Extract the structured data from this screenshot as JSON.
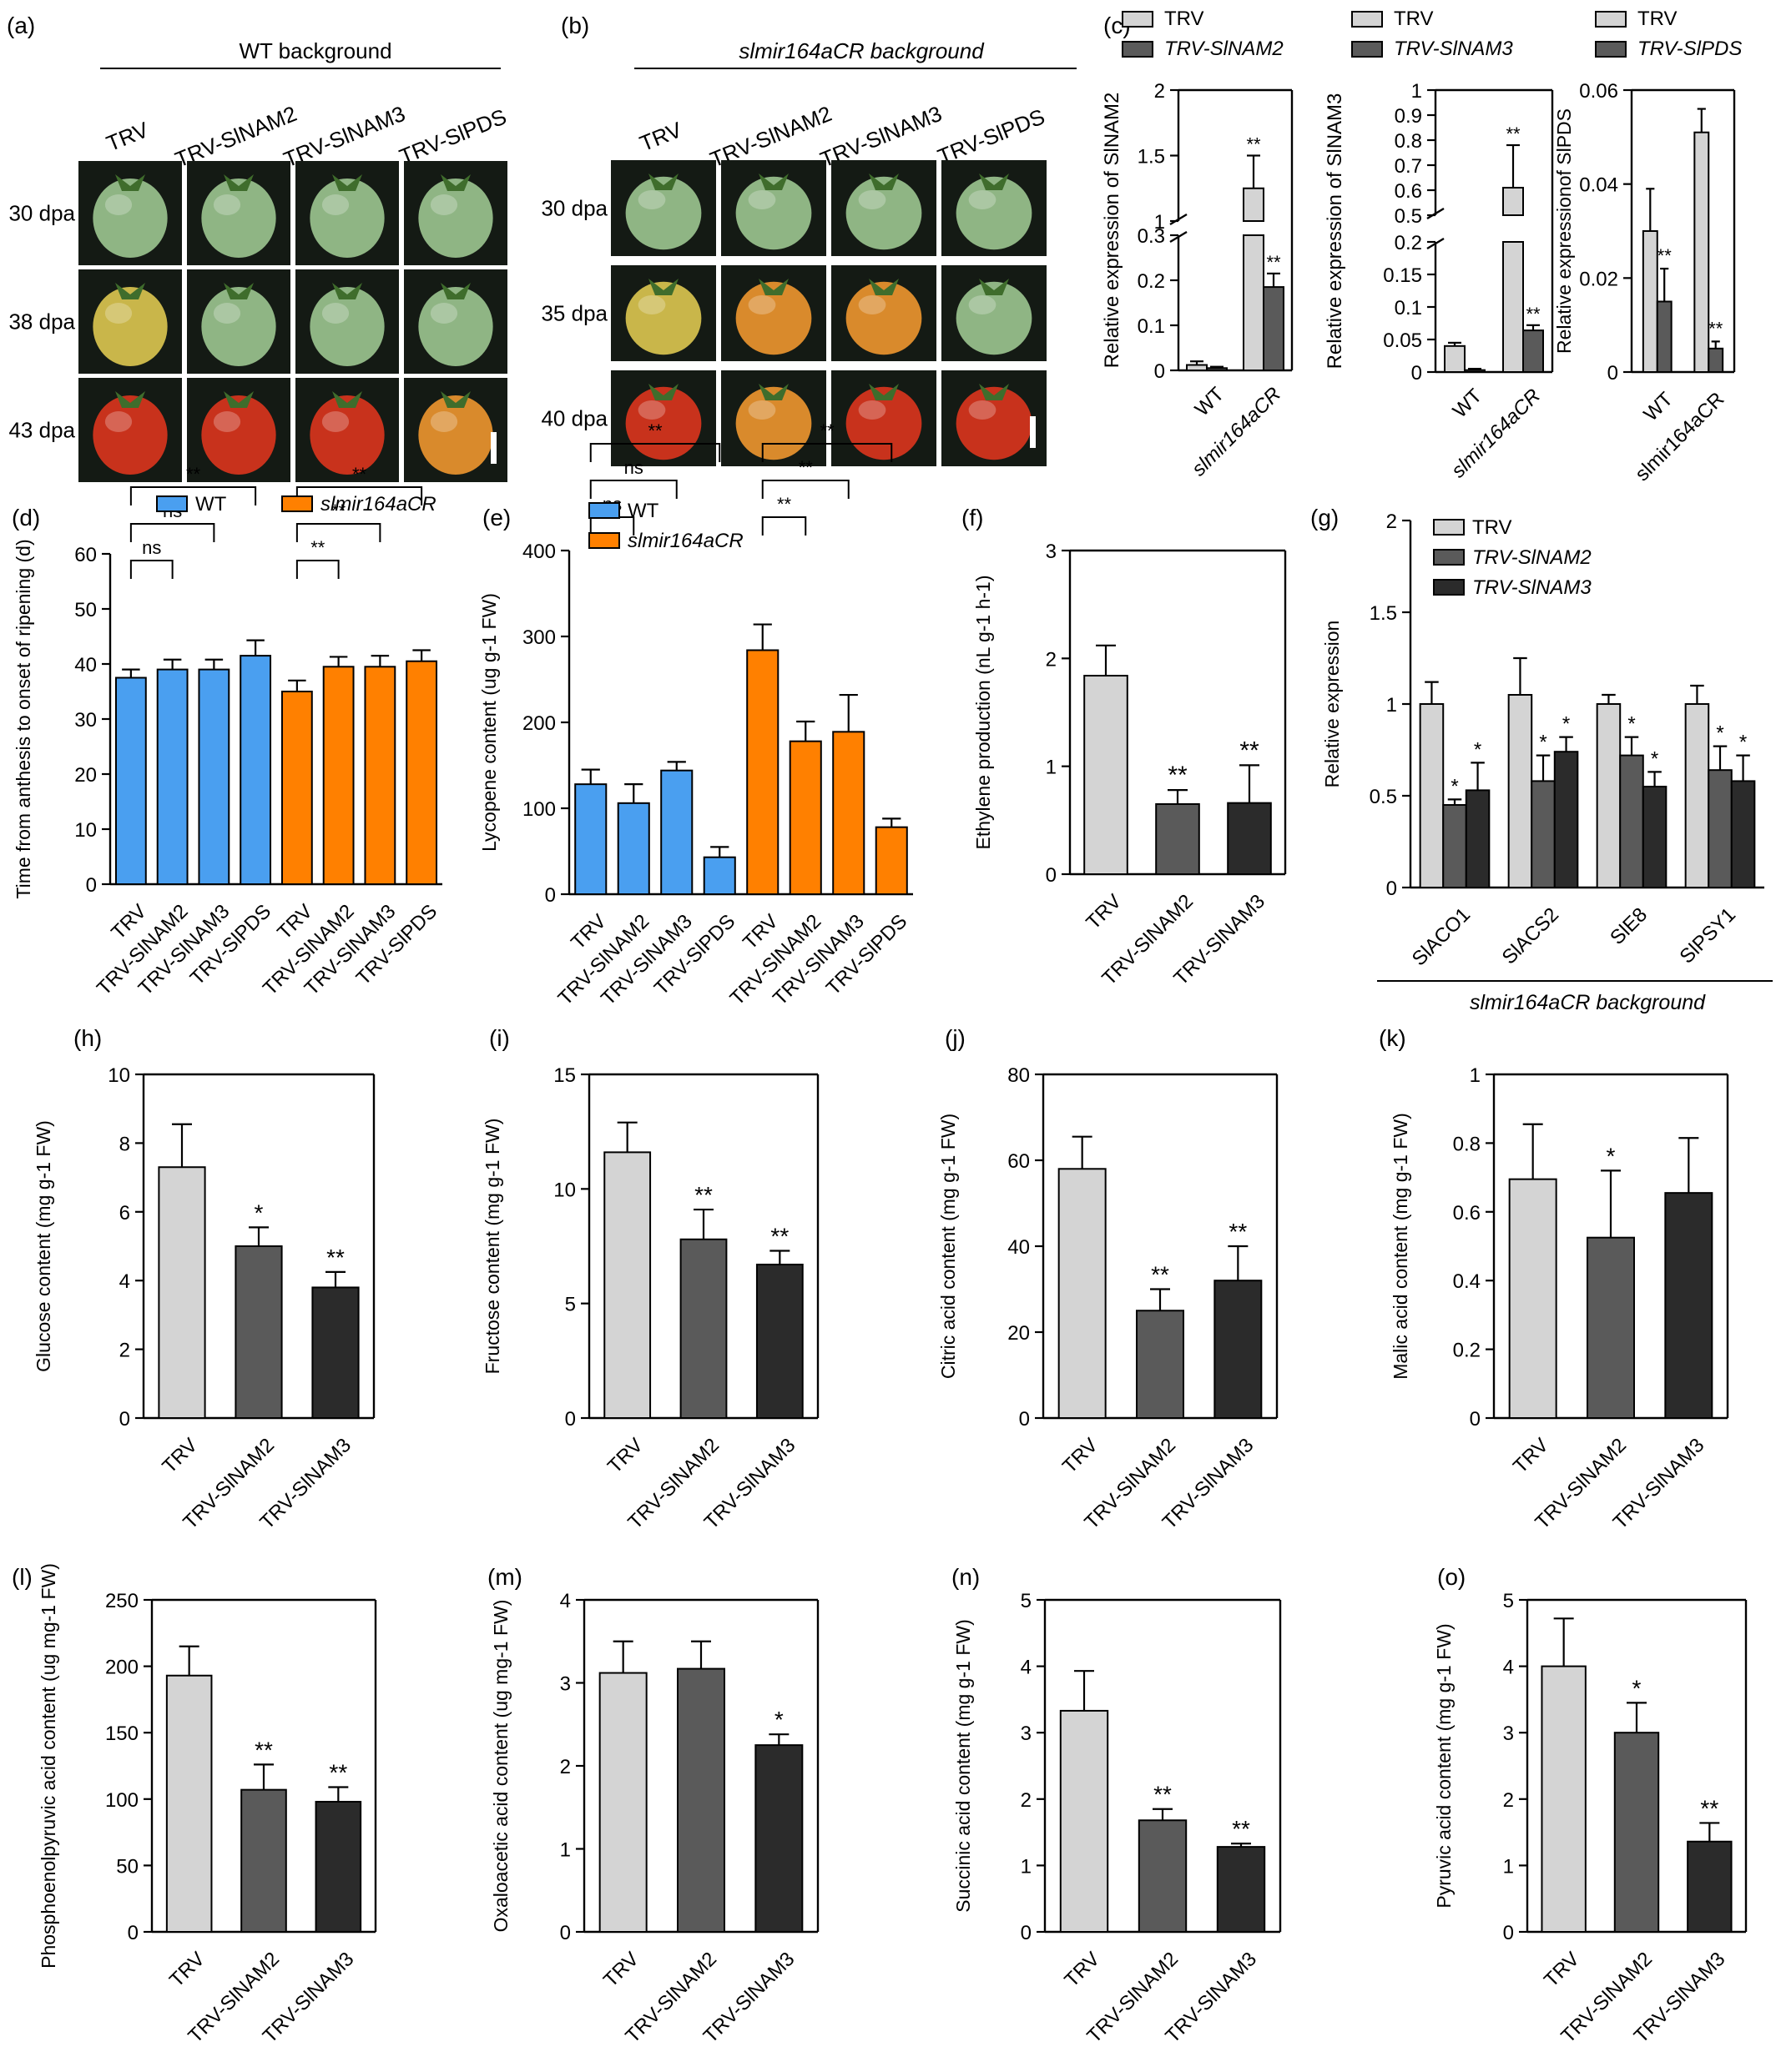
{
  "colors": {
    "trv": "#d4d4d4",
    "nam2": "#5a5a5a",
    "nam3": "#2b2b2b",
    "wt": "#4a9ff0",
    "mir": "#ff8000",
    "photo_bg": "#141a14",
    "fruit_green": "#8fb584",
    "fruit_yellow": "#c9b64a",
    "fruit_orange": "#d98a2c",
    "fruit_red": "#c8321c"
  },
  "photos": {
    "a": {
      "letter": "(a)",
      "header": "WT background",
      "columns": [
        "TRV",
        "TRV-SlNAM2",
        "TRV-SlNAM3",
        "TRV-SlPDS"
      ],
      "rows": [
        "30 dpa",
        "38 dpa",
        "43 dpa"
      ],
      "fruit_colors": [
        [
          "green",
          "green",
          "green",
          "green"
        ],
        [
          "yellow",
          "green",
          "green",
          "green"
        ],
        [
          "red",
          "red",
          "red",
          "orange"
        ]
      ]
    },
    "b": {
      "letter": "(b)",
      "header": "slmir164aCR background",
      "columns": [
        "TRV",
        "TRV-SlNAM2",
        "TRV-SlNAM3",
        "TRV-SlPDS"
      ],
      "rows": [
        "30 dpa",
        "35 dpa",
        "40 dpa"
      ],
      "fruit_colors": [
        [
          "green",
          "green",
          "green",
          "green"
        ],
        [
          "yellow",
          "orange",
          "orange",
          "green"
        ],
        [
          "red",
          "orange",
          "red",
          "red"
        ]
      ]
    }
  },
  "chart_data": [
    {
      "id": "c1",
      "letter": "(c)",
      "type": "bar",
      "legend": [
        "TRV",
        "TRV-SlNAM2"
      ],
      "ylabel": "Relative expression of SlNAM2",
      "categories": [
        "WT",
        "slmir164aCR"
      ],
      "broken_axis": true,
      "lower_range": [
        0,
        0.3
      ],
      "upper_range": [
        1.0,
        2.0
      ],
      "lower_ticks": [
        0,
        0.1,
        0.2,
        0.3
      ],
      "upper_ticks": [
        1.0,
        1.5,
        2.0
      ],
      "series": [
        {
          "name": "TRV",
          "values": [
            0.012,
            1.25
          ],
          "errors": [
            0.008,
            0.25
          ]
        },
        {
          "name": "TRV-SlNAM2",
          "values": [
            0.005,
            0.185
          ],
          "errors": [
            0.003,
            0.03
          ]
        }
      ],
      "sig": [
        [
          "",
          "**"
        ],
        [
          "",
          "**"
        ]
      ]
    },
    {
      "id": "c2",
      "letter": "",
      "type": "bar",
      "legend": [
        "TRV",
        "TRV-SlNAM3"
      ],
      "ylabel": "Relative expression of SlNAM3",
      "categories": [
        "WT",
        "slmir164aCR"
      ],
      "broken_axis": true,
      "lower_range": [
        0,
        0.2
      ],
      "upper_range": [
        0.5,
        1.0
      ],
      "lower_ticks": [
        0,
        0.05,
        0.1,
        0.15,
        0.2
      ],
      "upper_ticks": [
        0.5,
        0.6,
        0.7,
        0.8,
        0.9,
        1.0
      ],
      "series": [
        {
          "name": "TRV",
          "values": [
            0.04,
            0.61
          ],
          "errors": [
            0.005,
            0.17
          ]
        },
        {
          "name": "TRV-SlNAM3",
          "values": [
            0.003,
            0.064
          ],
          "errors": [
            0.002,
            0.008
          ]
        }
      ],
      "sig": [
        [
          "",
          "**"
        ],
        [
          "",
          "**"
        ]
      ]
    },
    {
      "id": "c3",
      "letter": "",
      "type": "bar",
      "legend": [
        "TRV",
        "TRV-SlPDS"
      ],
      "ylabel": "Relative expressionof SlPDS",
      "categories": [
        "WT",
        "slmir164aCR"
      ],
      "ylim": [
        0,
        0.06
      ],
      "yticks": [
        0,
        0.02,
        0.04,
        0.06
      ],
      "series": [
        {
          "name": "TRV",
          "values": [
            0.03,
            0.051
          ],
          "errors": [
            0.009,
            0.005
          ]
        },
        {
          "name": "TRV-SlPDS",
          "values": [
            0.015,
            0.005
          ],
          "errors": [
            0.007,
            0.0015
          ]
        }
      ],
      "sig": [
        [
          "",
          ""
        ],
        [
          "**",
          "**"
        ]
      ]
    },
    {
      "id": "d",
      "letter": "(d)",
      "type": "bar",
      "legend": [
        "WT",
        "slmir164aCR"
      ],
      "ylabel": "Time from anthesis to onset of ripening (d)",
      "categories": [
        "TRV",
        "TRV-SlNAM2",
        "TRV-SlNAM3",
        "TRV-SlPDS",
        "TRV",
        "TRV-SlNAM2",
        "TRV-SlNAM3",
        "TRV-SlPDS"
      ],
      "ylim": [
        0,
        60
      ],
      "yticks": [
        0,
        10,
        20,
        30,
        40,
        50,
        60
      ],
      "values": [
        37.5,
        39,
        39,
        41.5,
        35,
        39.5,
        39.5,
        40.5
      ],
      "errors": [
        1.5,
        1.8,
        1.8,
        2.8,
        2,
        1.8,
        2,
        2
      ],
      "groups": [
        "WT",
        "WT",
        "WT",
        "WT",
        "slmir164aCR",
        "slmir164aCR",
        "slmir164aCR",
        "slmir164aCR"
      ],
      "brackets": [
        {
          "from": 0,
          "to": 1,
          "label": "ns",
          "level": 1
        },
        {
          "from": 0,
          "to": 2,
          "label": "ns",
          "level": 2
        },
        {
          "from": 0,
          "to": 3,
          "label": "**",
          "level": 3
        },
        {
          "from": 4,
          "to": 5,
          "label": "**",
          "level": 1
        },
        {
          "from": 4,
          "to": 6,
          "label": "**",
          "level": 2
        },
        {
          "from": 4,
          "to": 7,
          "label": "**",
          "level": 3
        }
      ]
    },
    {
      "id": "e",
      "letter": "(e)",
      "type": "bar",
      "legend": [
        "WT",
        "slmir164aCR"
      ],
      "ylabel": "Lycopene content (ug g-1 FW)",
      "categories": [
        "TRV",
        "TRV-SlNAM2",
        "TRV-SlNAM3",
        "TRV-SlPDS",
        "TRV",
        "TRV-SlNAM2",
        "TRV-SlNAM3",
        "TRV-SlPDS"
      ],
      "ylim": [
        0,
        400
      ],
      "yticks": [
        0,
        100,
        200,
        300,
        400
      ],
      "values": [
        128,
        106,
        144,
        43,
        284,
        178,
        189,
        78
      ],
      "errors": [
        17,
        22,
        10,
        12,
        30,
        23,
        43,
        10
      ],
      "groups": [
        "WT",
        "WT",
        "WT",
        "WT",
        "slmir164aCR",
        "slmir164aCR",
        "slmir164aCR",
        "slmir164aCR"
      ],
      "brackets": [
        {
          "from": 0,
          "to": 1,
          "label": "ns",
          "level": 1
        },
        {
          "from": 0,
          "to": 2,
          "label": "ns",
          "level": 2
        },
        {
          "from": 0,
          "to": 3,
          "label": "**",
          "level": 3
        },
        {
          "from": 4,
          "to": 5,
          "label": "**",
          "level": 1
        },
        {
          "from": 4,
          "to": 6,
          "label": "**",
          "level": 2
        },
        {
          "from": 4,
          "to": 7,
          "label": "**",
          "level": 3
        }
      ]
    },
    {
      "id": "f",
      "letter": "(f)",
      "type": "bar",
      "ylabel": "Ethylene production (nL g-1 h-1)",
      "categories": [
        "TRV",
        "TRV-SlNAM2",
        "TRV-SlNAM3"
      ],
      "ylim": [
        0,
        3
      ],
      "yticks": [
        0,
        1,
        2,
        3
      ],
      "values": [
        1.84,
        0.65,
        0.66
      ],
      "errors": [
        0.28,
        0.13,
        0.35
      ],
      "sig": [
        "",
        "**",
        "**"
      ]
    },
    {
      "id": "g",
      "letter": "(g)",
      "type": "bar",
      "legend": [
        "TRV",
        "TRV-SlNAM2",
        "TRV-SlNAM3"
      ],
      "ylabel": "Relative expression",
      "xtitle": "slmir164aCR background",
      "categories": [
        "SlACO1",
        "SlACS2",
        "SlE8",
        "SlPSY1"
      ],
      "ylim": [
        0,
        2.0
      ],
      "yticks": [
        0,
        0.5,
        1.0,
        1.5,
        2.0
      ],
      "series": [
        {
          "name": "TRV",
          "values": [
            1.0,
            1.05,
            1.0,
            1.0
          ],
          "errors": [
            0.12,
            0.2,
            0.05,
            0.1
          ]
        },
        {
          "name": "TRV-SlNAM2",
          "values": [
            0.45,
            0.58,
            0.72,
            0.64
          ],
          "errors": [
            0.03,
            0.14,
            0.1,
            0.13
          ]
        },
        {
          "name": "TRV-SlNAM3",
          "values": [
            0.53,
            0.74,
            0.55,
            0.58
          ],
          "errors": [
            0.15,
            0.08,
            0.08,
            0.14
          ]
        }
      ],
      "sig": [
        [
          "",
          "",
          "",
          ""
        ],
        [
          "*",
          "*",
          "*",
          "*"
        ],
        [
          "*",
          "*",
          "*",
          "*"
        ]
      ]
    },
    {
      "id": "h",
      "letter": "(h)",
      "type": "bar",
      "ylabel": "Glucose content (mg g-1 FW)",
      "categories": [
        "TRV",
        "TRV-SlNAM2",
        "TRV-SlNAM3"
      ],
      "ylim": [
        0,
        10
      ],
      "yticks": [
        0,
        2,
        4,
        6,
        8,
        10
      ],
      "values": [
        7.3,
        5.0,
        3.8
      ],
      "errors": [
        1.25,
        0.55,
        0.45
      ],
      "sig": [
        "",
        "*",
        "**"
      ]
    },
    {
      "id": "i",
      "letter": "(i)",
      "type": "bar",
      "ylabel": "Fructose content (mg g-1 FW)",
      "categories": [
        "TRV",
        "TRV-SlNAM2",
        "TRV-SlNAM3"
      ],
      "ylim": [
        0,
        15
      ],
      "yticks": [
        0,
        5,
        10,
        15
      ],
      "values": [
        11.6,
        7.8,
        6.7
      ],
      "errors": [
        1.3,
        1.3,
        0.6
      ],
      "sig": [
        "",
        "**",
        "**"
      ]
    },
    {
      "id": "j",
      "letter": "(j)",
      "type": "bar",
      "ylabel": "Citric acid content (mg g-1 FW)",
      "categories": [
        "TRV",
        "TRV-SlNAM2",
        "TRV-SlNAM3"
      ],
      "ylim": [
        0,
        80
      ],
      "yticks": [
        0,
        20,
        40,
        60,
        80
      ],
      "values": [
        58,
        25,
        32
      ],
      "errors": [
        7.5,
        5,
        8
      ],
      "sig": [
        "",
        "**",
        "**"
      ]
    },
    {
      "id": "k",
      "letter": "(k)",
      "type": "bar",
      "ylabel": "Malic acid content (mg g-1 FW)",
      "categories": [
        "TRV",
        "TRV-SlNAM2",
        "TRV-SlNAM3"
      ],
      "ylim": [
        0,
        1.0
      ],
      "yticks": [
        0,
        0.2,
        0.4,
        0.6,
        0.8,
        1.0
      ],
      "values": [
        0.695,
        0.525,
        0.655
      ],
      "errors": [
        0.16,
        0.195,
        0.16
      ],
      "sig": [
        "",
        "*",
        ""
      ]
    },
    {
      "id": "l",
      "letter": "(l)",
      "type": "bar",
      "ylabel": "Phosphoenolpyruvic acid content (ug mg-1 FW)",
      "categories": [
        "TRV",
        "TRV-SlNAM2",
        "TRV-SlNAM3"
      ],
      "ylim": [
        0,
        250
      ],
      "yticks": [
        0,
        50,
        100,
        150,
        200,
        250
      ],
      "values": [
        193,
        107,
        98
      ],
      "errors": [
        22,
        19,
        11
      ],
      "sig": [
        "",
        "**",
        "**"
      ]
    },
    {
      "id": "m",
      "letter": "(m)",
      "type": "bar",
      "ylabel": "Oxaloacetic acid content (ug mg-1 FW)",
      "categories": [
        "TRV",
        "TRV-SlNAM2",
        "TRV-SlNAM3"
      ],
      "ylim": [
        0,
        4
      ],
      "yticks": [
        0,
        1,
        2,
        3,
        4
      ],
      "values": [
        3.12,
        3.17,
        2.25
      ],
      "errors": [
        0.38,
        0.33,
        0.13
      ],
      "sig": [
        "",
        "",
        "*"
      ]
    },
    {
      "id": "n",
      "letter": "(n)",
      "type": "bar",
      "ylabel": "Succinic acid content (mg g-1 FW)",
      "categories": [
        "TRV",
        "TRV-SlNAM2",
        "TRV-SlNAM3"
      ],
      "ylim": [
        0,
        5
      ],
      "yticks": [
        0,
        1,
        2,
        3,
        4,
        5
      ],
      "values": [
        3.33,
        1.68,
        1.28
      ],
      "errors": [
        0.6,
        0.17,
        0.05
      ],
      "sig": [
        "",
        "**",
        "**"
      ]
    },
    {
      "id": "o",
      "letter": "(o)",
      "type": "bar",
      "ylabel": "Pyruvic acid content (mg g-1 FW)",
      "categories": [
        "TRV",
        "TRV-SlNAM2",
        "TRV-SlNAM3"
      ],
      "ylim": [
        0,
        5
      ],
      "yticks": [
        0,
        1,
        2,
        3,
        4,
        5
      ],
      "values": [
        4.0,
        3.0,
        1.36
      ],
      "errors": [
        0.72,
        0.45,
        0.28
      ],
      "sig": [
        "",
        "*",
        "**"
      ]
    }
  ]
}
